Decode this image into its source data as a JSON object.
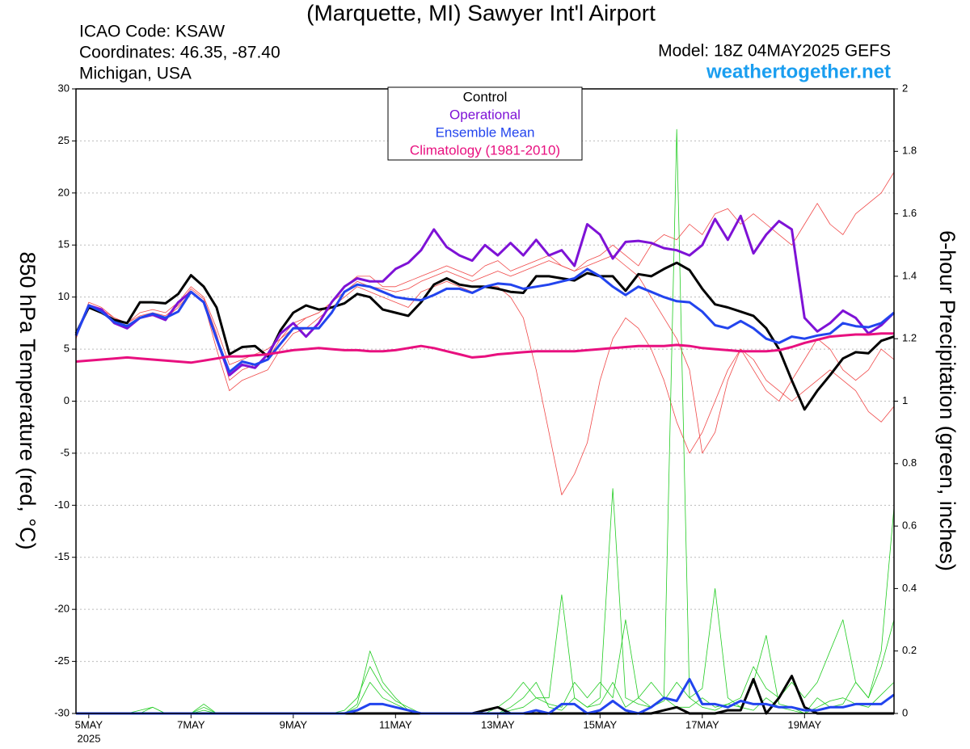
{
  "chart_data": {
    "type": "line",
    "title": "(Marquette, MI) Sawyer Int'l Airport",
    "info_left": [
      "ICAO Code: KSAW",
      "Coordinates: 46.35, -87.40",
      "Michigan, USA"
    ],
    "model": "Model: 18Z 04MAY2025 GEFS",
    "source": "weathertogether.net",
    "y_label": "850 hPa Temperature (red, °C)",
    "y2_label": "6-hour Precipitation (green, inches)",
    "year_label": "2025",
    "legend": "top",
    "grid": true,
    "xlim": [
      -0.25,
      15.75
    ],
    "xticks": [
      {
        "value": 0,
        "label": "5MAY"
      },
      {
        "value": 2,
        "label": "7MAY"
      },
      {
        "value": 4,
        "label": "9MAY"
      },
      {
        "value": 6,
        "label": "11MAY"
      },
      {
        "value": 8,
        "label": "13MAY"
      },
      {
        "value": 10,
        "label": "15MAY"
      },
      {
        "value": 12,
        "label": "17MAY"
      },
      {
        "value": 14,
        "label": "19MAY"
      }
    ],
    "ylim": [
      -30,
      30
    ],
    "yticks": [
      -30,
      -25,
      -20,
      -15,
      -10,
      -5,
      0,
      5,
      10,
      15,
      20,
      25,
      30
    ],
    "y2lim": [
      0,
      2
    ],
    "y2ticks": [
      0,
      0.2,
      0.4,
      0.6,
      0.8,
      1,
      1.2,
      1.4,
      1.6,
      1.8,
      2
    ],
    "x": [
      -0.25,
      0,
      0.25,
      0.5,
      0.75,
      1,
      1.25,
      1.5,
      1.75,
      2,
      2.25,
      2.5,
      2.75,
      3,
      3.25,
      3.5,
      3.75,
      4,
      4.25,
      4.5,
      4.75,
      5,
      5.25,
      5.5,
      5.75,
      6,
      6.25,
      6.5,
      6.75,
      7,
      7.25,
      7.5,
      7.75,
      8,
      8.25,
      8.5,
      8.75,
      9,
      9.25,
      9.5,
      9.75,
      10,
      10.25,
      10.5,
      10.75,
      11,
      11.25,
      11.5,
      11.75,
      12,
      12.25,
      12.5,
      12.75,
      13,
      13.25,
      13.5,
      13.75,
      14,
      14.25,
      14.5,
      14.75,
      15,
      15.25,
      15.5,
      15.75
    ],
    "series": [
      {
        "color": "#f04848",
        "values": [
          6,
          9.5,
          9,
          8,
          7.5,
          8.5,
          8.8,
          8.5,
          9.5,
          11,
          10,
          7,
          3.5,
          4,
          4.5,
          5,
          6,
          7.5,
          8,
          8.5,
          9.5,
          11,
          12,
          12,
          11,
          11,
          11.5,
          12,
          12.5,
          13,
          12.5,
          12,
          13,
          13.5,
          12.5,
          13,
          13.5,
          14,
          13,
          12.5,
          13.5,
          14,
          15,
          14,
          13,
          15,
          16,
          15.5,
          17,
          16,
          18,
          18.5,
          17,
          18,
          17,
          16,
          15,
          17,
          19,
          17,
          16,
          18,
          19,
          20,
          22
        ]
      },
      {
        "color": "#f04848",
        "values": [
          6.5,
          9,
          8.5,
          7.5,
          7,
          8,
          8.2,
          8,
          9,
          10.5,
          9.5,
          5,
          1,
          2,
          2.5,
          3,
          5,
          6.5,
          7,
          8,
          9,
          10,
          11,
          10.5,
          10,
          9.5,
          9,
          10.5,
          11,
          11.5,
          11,
          10.5,
          11,
          11,
          10,
          8,
          3,
          -3,
          -9,
          -7,
          -4,
          2,
          6,
          8,
          7,
          5,
          2,
          -2,
          -5,
          -3,
          0,
          3,
          5,
          4,
          2,
          1,
          0,
          1,
          2,
          3,
          2,
          1,
          -1,
          -2,
          -0.5
        ]
      },
      {
        "color": "#f04848",
        "values": [
          6,
          9.3,
          8.8,
          8,
          7.5,
          8.2,
          8.5,
          8.2,
          9.2,
          10.8,
          9.8,
          6.5,
          2,
          3,
          3.5,
          4,
          6,
          7,
          8,
          8.5,
          9.5,
          10.5,
          11.5,
          11,
          10.8,
          10.5,
          10.8,
          11.5,
          12,
          12.5,
          12,
          11.5,
          12,
          12.5,
          12,
          12.5,
          13,
          13.5,
          13,
          12.5,
          13,
          13.5,
          14,
          13,
          12,
          10,
          8,
          6,
          3,
          -5,
          -3,
          2,
          5,
          3,
          1,
          0,
          2,
          4,
          6,
          5,
          3,
          2,
          3,
          5,
          4
        ]
      },
      {
        "color": "#22cc22",
        "axis": "y2",
        "values": [
          0,
          0,
          0,
          0,
          0,
          0.01,
          0.02,
          0,
          0,
          0,
          0.01,
          0,
          0,
          0,
          0,
          0,
          0,
          0,
          0,
          0,
          0,
          0,
          0.02,
          0.1,
          0.05,
          0.03,
          0.01,
          0,
          0,
          0,
          0,
          0,
          0,
          0,
          0.02,
          0.05,
          0.1,
          0.02,
          0.01,
          0.05,
          0.02,
          0.03,
          0.1,
          0.02,
          0.05,
          0.02,
          0.05,
          1.87,
          0.05,
          0.02,
          0.01,
          0.03,
          0.02,
          0.01,
          0.05,
          0.02,
          0.01,
          0,
          0.02,
          0.04,
          0.05,
          0.03,
          0.02,
          0.06,
          0.1
        ]
      },
      {
        "color": "#22cc22",
        "axis": "y2",
        "values": [
          0,
          0,
          0,
          0,
          0,
          0,
          0.02,
          0,
          0,
          0,
          0.03,
          0,
          0,
          0,
          0,
          0,
          0,
          0,
          0,
          0,
          0,
          0.01,
          0.05,
          0.15,
          0.08,
          0.04,
          0.02,
          0,
          0,
          0,
          0,
          0,
          0,
          0.02,
          0.05,
          0.1,
          0.05,
          0.05,
          0.38,
          0.05,
          0.02,
          0.05,
          0.72,
          0.05,
          0.03,
          0.02,
          0.04,
          0.1,
          0.05,
          0.08,
          0.4,
          0.05,
          0.02,
          0.1,
          0.25,
          0.03,
          0.02,
          0,
          0.05,
          0.02,
          0.03,
          0.1,
          0.05,
          0.15,
          0.3
        ]
      },
      {
        "color": "#22cc22",
        "axis": "y2",
        "values": [
          0,
          0,
          0,
          0,
          0,
          0,
          0,
          0,
          0,
          0,
          0.02,
          0,
          0,
          0,
          0,
          0,
          0,
          0,
          0,
          0,
          0,
          0,
          0.03,
          0.2,
          0.1,
          0.05,
          0.01,
          0,
          0,
          0,
          0,
          0,
          0,
          0,
          0.01,
          0.02,
          0.05,
          0.03,
          0.02,
          0.1,
          0.05,
          0.1,
          0.05,
          0.3,
          0.05,
          0.1,
          0.05,
          0.02,
          0.02,
          0.05,
          0.02,
          0.03,
          0.05,
          0.15,
          0.08,
          0.05,
          0.1,
          0.05,
          0.1,
          0.2,
          0.3,
          0.1,
          0.05,
          0.2,
          0.66
        ]
      },
      {
        "color": "#000000",
        "axis": "y2",
        "values": [
          0,
          0,
          0,
          0,
          0,
          0,
          0,
          0,
          0,
          0,
          0,
          0,
          0,
          0,
          0,
          0,
          0,
          0,
          0,
          0,
          0,
          0,
          0,
          0,
          0,
          0,
          0,
          0,
          0,
          0,
          0,
          0,
          0.01,
          0.02,
          0,
          0,
          0,
          0,
          0,
          0,
          0,
          0,
          0,
          0,
          0,
          0,
          0.01,
          0.02,
          0,
          0,
          0,
          0.01,
          0.01,
          0.11,
          0,
          0.05,
          0.12,
          0.02,
          0,
          0,
          0,
          0,
          0,
          0,
          0
        ]
      },
      {
        "color": "#2244ee",
        "axis": "y2",
        "values": [
          0,
          0,
          0,
          0,
          0,
          0,
          0,
          0,
          0,
          0,
          0,
          0,
          0,
          0,
          0,
          0,
          0,
          0,
          0,
          0,
          0,
          0,
          0.01,
          0.03,
          0.03,
          0.02,
          0.01,
          0,
          0,
          0,
          0,
          0,
          0,
          0,
          0,
          0,
          0.01,
          0,
          0.03,
          0.03,
          0,
          0.01,
          0.04,
          0.01,
          0,
          0.02,
          0.05,
          0.04,
          0.11,
          0.03,
          0.03,
          0.02,
          0.04,
          0.03,
          0.03,
          0.02,
          0.02,
          0.01,
          0.01,
          0.02,
          0.02,
          0.03,
          0.03,
          0.03,
          0.06
        ]
      },
      {
        "name": "Control",
        "color": "#000000",
        "values": [
          6.5,
          9,
          8.5,
          7.8,
          7.5,
          9.5,
          9.5,
          9.4,
          10.3,
          12.1,
          11,
          9,
          4.5,
          5.2,
          5.3,
          4.3,
          6.8,
          8.5,
          9.2,
          8.8,
          9,
          9.4,
          10.3,
          10,
          8.8,
          8.5,
          8.2,
          9.5,
          11.2,
          11.8,
          11.2,
          11,
          11,
          10.8,
          10.5,
          10.4,
          12,
          12,
          11.8,
          11.6,
          12.3,
          12,
          12,
          10.6,
          12.2,
          12,
          12.7,
          13.3,
          12.6,
          10.8,
          9.3,
          9,
          8.6,
          8.2,
          7,
          5,
          2,
          -0.8,
          1,
          2.5,
          4.1,
          4.7,
          4.6,
          5.8,
          6.2
        ]
      },
      {
        "name": "Operational",
        "color": "#7e12d6",
        "values": [
          6.3,
          9.2,
          8.8,
          7.5,
          7,
          8,
          8.3,
          7.8,
          9.5,
          10.5,
          9.5,
          6,
          2.5,
          3.5,
          3.2,
          4.5,
          6.5,
          7.5,
          6.2,
          7.5,
          9.5,
          11,
          11.8,
          11.5,
          11.5,
          12.7,
          13.3,
          14.5,
          16.5,
          14.8,
          14,
          13.5,
          15,
          14,
          15.2,
          14,
          15.5,
          14,
          14.5,
          13,
          17,
          16,
          13.7,
          15.3,
          15.4,
          15.2,
          14.7,
          14.5,
          14,
          15,
          17.5,
          15.5,
          17.8,
          14.2,
          16,
          17.3,
          16.5,
          8,
          6.7,
          7.5,
          8.7,
          8,
          6.5,
          7.3,
          8.5
        ]
      },
      {
        "name": "Ensemble Mean",
        "color": "#2244ee",
        "values": [
          6.3,
          9.2,
          8.6,
          7.6,
          7.2,
          8,
          8.4,
          8,
          8.6,
          10.5,
          9.5,
          6,
          2.8,
          3.8,
          3.5,
          4,
          5.5,
          7,
          7,
          7,
          8.5,
          10.5,
          11.2,
          11,
          10.5,
          10,
          9.8,
          9.7,
          10.2,
          10.8,
          10.8,
          10.4,
          11,
          11.3,
          11.2,
          10.8,
          11,
          11.2,
          11.5,
          11.8,
          12.7,
          12,
          11,
          10.2,
          11,
          10.5,
          10,
          9.6,
          9.5,
          8.6,
          7.3,
          7,
          7.7,
          7,
          6,
          5.6,
          6.2,
          6,
          6.3,
          6.5,
          7.5,
          7.2,
          7.1,
          7.5,
          8.5
        ]
      },
      {
        "name": "Climatology (1981-2010)",
        "color": "#e8107f",
        "values": [
          3.8,
          3.9,
          4.0,
          4.1,
          4.2,
          4.1,
          4.0,
          3.9,
          3.8,
          3.7,
          3.9,
          4.1,
          4.3,
          4.3,
          4.4,
          4.5,
          4.7,
          4.9,
          5.0,
          5.1,
          5.0,
          4.9,
          4.9,
          4.8,
          4.8,
          4.9,
          5.1,
          5.3,
          5.1,
          4.8,
          4.5,
          4.2,
          4.3,
          4.5,
          4.6,
          4.7,
          4.8,
          4.8,
          4.8,
          4.8,
          4.9,
          5.0,
          5.1,
          5.2,
          5.3,
          5.3,
          5.3,
          5.4,
          5.3,
          5.1,
          5.0,
          4.9,
          4.8,
          4.8,
          4.8,
          4.9,
          5.2,
          5.6,
          5.9,
          6.2,
          6.3,
          6.4,
          6.4,
          6.5,
          6.5
        ]
      }
    ]
  }
}
